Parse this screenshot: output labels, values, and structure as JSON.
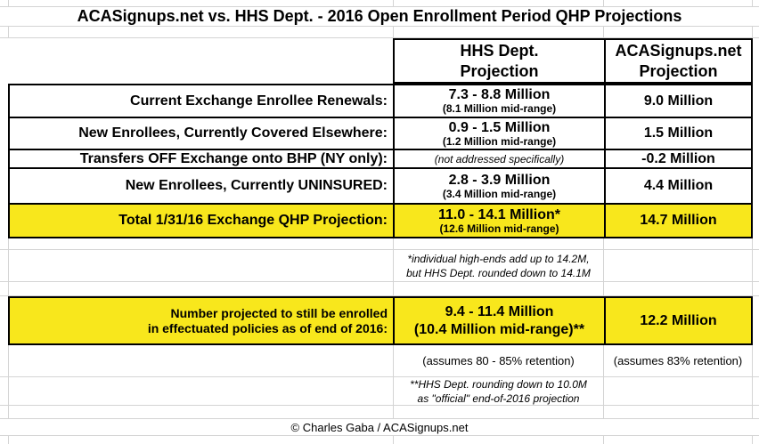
{
  "title": "ACASignups.net vs. HHS Dept. - 2016 Open Enrollment Period QHP Projections",
  "header": {
    "hhs": [
      "HHS Dept.",
      "Projection"
    ],
    "aca": [
      "ACASignups.net",
      "Projection"
    ]
  },
  "rows": [
    {
      "label": "Current Exchange Enrollee Renewals:",
      "hhs_main": "7.3 - 8.8 Million",
      "hhs_sub": "(8.1 Million mid-range)",
      "aca": "9.0 Million"
    },
    {
      "label": "New Enrollees, Currently Covered Elsewhere:",
      "hhs_main": "0.9 - 1.5 Million",
      "hhs_sub": "(1.2 Million mid-range)",
      "aca": "1.5 Million"
    },
    {
      "label": "Transfers OFF Exchange onto BHP (NY only):",
      "hhs_note": "(not addressed specifically)",
      "aca": "-0.2 Million"
    },
    {
      "label": "New Enrollees, Currently UNINSURED:",
      "hhs_main": "2.8 - 3.9 Million",
      "hhs_sub": "(3.4 Million mid-range)",
      "aca": "4.4 Million"
    },
    {
      "label": "Total 1/31/16 Exchange QHP Projection:",
      "hhs_main": "11.0 - 14.1 Million*",
      "hhs_sub": "(12.6 Million mid-range)",
      "aca": "14.7 Million"
    }
  ],
  "footnote1": {
    "line1": "*individual high-ends add up to 14.2M,",
    "line2": "but HHS Dept. rounded down to 14.1M"
  },
  "effectuated": {
    "label_line1": "Number projected to still be enrolled",
    "label_line2": "in effectuated policies as of end of 2016:",
    "hhs_line1": "9.4 - 11.4 Million",
    "hhs_line2": "(10.4 Million mid-range)**",
    "aca": "12.2 Million"
  },
  "assumptions": {
    "hhs": "(assumes 80 - 85% retention)",
    "aca": "(assumes 83% retention)"
  },
  "footnote2": {
    "line1": "**HHS Dept. rounding down to 10.0M",
    "line2": "as \"official\" end-of-2016 projection"
  },
  "copyright": "© Charles Gaba / ACASignups.net",
  "colors": {
    "highlight": "#F8E71C",
    "gridline": "#D4D4D4",
    "border": "#000000",
    "background": "#FFFFFF"
  },
  "chart_data": {
    "type": "table",
    "title": "ACASignups.net vs. HHS Dept. - 2016 Open Enrollment Period QHP Projections",
    "columns": [
      "",
      "HHS Dept. Projection",
      "ACASignups.net Projection"
    ],
    "rows": [
      [
        "Current Exchange Enrollee Renewals:",
        "7.3 - 8.8 Million (8.1 Million mid-range)",
        "9.0 Million"
      ],
      [
        "New Enrollees, Currently Covered Elsewhere:",
        "0.9 - 1.5 Million (1.2 Million mid-range)",
        "1.5 Million"
      ],
      [
        "Transfers OFF Exchange onto BHP (NY only):",
        "(not addressed specifically)",
        "-0.2 Million"
      ],
      [
        "New Enrollees, Currently UNINSURED:",
        "2.8 - 3.9 Million (3.4 Million mid-range)",
        "4.4 Million"
      ],
      [
        "Total 1/31/16 Exchange QHP Projection:",
        "11.0 - 14.1 Million* (12.6 Million mid-range)",
        "14.7 Million"
      ],
      [
        "Number projected to still be enrolled in effectuated policies as of end of 2016:",
        "9.4 - 11.4 Million (10.4 Million mid-range)**",
        "12.2 Million"
      ],
      [
        "",
        "(assumes 80 - 85% retention)",
        "(assumes 83% retention)"
      ]
    ],
    "notes": [
      "*individual high-ends add up to 14.2M, but HHS Dept. rounded down to 14.1M",
      "**HHS Dept. rounding down to 10.0M as \"official\" end-of-2016 projection"
    ],
    "highlighted_rows": [
      4,
      5
    ],
    "layout": {
      "grid": true,
      "highlight_color": "#F8E71C"
    }
  }
}
